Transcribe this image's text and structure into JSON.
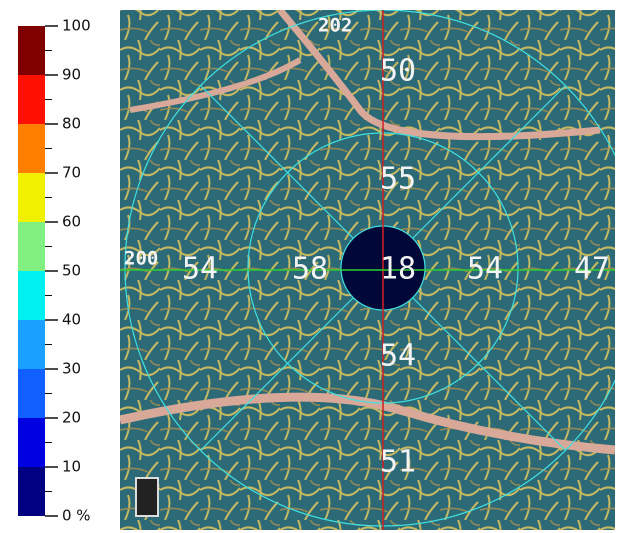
{
  "colorbar": {
    "ticks": [
      {
        "value": 0,
        "label": "0 %"
      },
      10,
      20,
      30,
      40,
      50,
      60,
      70,
      80,
      90,
      100
    ],
    "colors": [
      "#000080",
      "#0000e0",
      "#1060ff",
      "#1aa0ff",
      "#00f0f0",
      "#80f080",
      "#f0f000",
      "#ff8000",
      "#ff1000",
      "#800000"
    ]
  },
  "labels": {
    "top": "202",
    "left": "200"
  },
  "sectors": {
    "center": "18",
    "inner_superior": "55",
    "inner_left": "58",
    "inner_right": "54",
    "inner_inferior": "54",
    "outer_superior": "50",
    "outer_left": "54",
    "outer_right": "47",
    "outer_inferior": "51"
  }
}
